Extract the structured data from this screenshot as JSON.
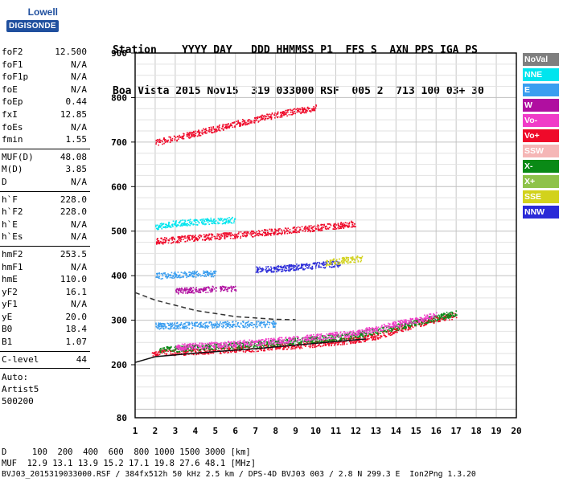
{
  "logo": {
    "line1": "Lowell",
    "line2": "DIGISONDE"
  },
  "header": {
    "line1": "Station    YYYY DAY   DDD HHMMSS P1  FFS S  AXN PPS IGA PS",
    "line2": "Boa Vista 2015 Nov15  319 033000 RSF  005 2  713 100 03+ 30"
  },
  "params_groups": [
    [
      {
        "k": "foF2",
        "v": "12.500"
      },
      {
        "k": "foF1",
        "v": "N/A"
      },
      {
        "k": "foF1p",
        "v": "N/A"
      },
      {
        "k": "foE",
        "v": "N/A"
      },
      {
        "k": "foEp",
        "v": "0.44"
      },
      {
        "k": "fxI",
        "v": "12.85"
      },
      {
        "k": "foEs",
        "v": "N/A"
      },
      {
        "k": "fmin",
        "v": "1.55"
      }
    ],
    [
      {
        "k": "MUF(D)",
        "v": "48.08"
      },
      {
        "k": "M(D)",
        "v": "3.85"
      },
      {
        "k": "D",
        "v": "N/A"
      }
    ],
    [
      {
        "k": "h`F",
        "v": "228.0"
      },
      {
        "k": "h`F2",
        "v": "228.0"
      },
      {
        "k": "h`E",
        "v": "N/A"
      },
      {
        "k": "h`Es",
        "v": "N/A"
      }
    ],
    [
      {
        "k": "hmF2",
        "v": "253.5"
      },
      {
        "k": "hmF1",
        "v": "N/A"
      },
      {
        "k": "hmE",
        "v": "110.0"
      },
      {
        "k": "yF2",
        "v": "16.1"
      },
      {
        "k": "yF1",
        "v": "N/A"
      },
      {
        "k": "yE",
        "v": "20.0"
      },
      {
        "k": "B0",
        "v": "18.4"
      },
      {
        "k": "B1",
        "v": "1.07"
      }
    ],
    [
      {
        "k": "C-level",
        "v": "44"
      }
    ]
  ],
  "auto": {
    "line1": "Auto:",
    "line2": "Artist5",
    "line3": "500200"
  },
  "legend": [
    {
      "label": "NoVal",
      "color": "#7f7f7f"
    },
    {
      "label": "NNE",
      "color": "#00e5ee"
    },
    {
      "label": "E",
      "color": "#3a9ef0"
    },
    {
      "label": "W",
      "color": "#b00fa0"
    },
    {
      "label": "Vo-",
      "color": "#f03cc8"
    },
    {
      "label": "Vo+",
      "color": "#ef0a2a"
    },
    {
      "label": "SSW",
      "color": "#f5b6b6"
    },
    {
      "label": "X-",
      "color": "#0a8a16"
    },
    {
      "label": "X+",
      "color": "#8ec24a"
    },
    {
      "label": "SSE",
      "color": "#d2d21c"
    },
    {
      "label": "NNW",
      "color": "#2a2ad8"
    }
  ],
  "bottom": {
    "line1": "D     100  200  400  600  800 1000 1500 3000 [km]",
    "line2": "MUF  12.9 13.1 13.9 15.2 17.1 19.8 27.6 48.1 [MHz]",
    "line3": "BVJ03_2015319033000.RSF / 384fx512h 50 kHz 2.5 km / DPS-4D BVJ03 003 / 2.8 N 299.3 E  Ion2Png 1.3.20"
  },
  "chart_data": {
    "type": "scatter",
    "xlim": [
      1,
      20
    ],
    "ylim": [
      80,
      900
    ],
    "xticks": [
      "1",
      "2",
      "3",
      "4",
      "5",
      "6",
      "7",
      "8",
      "9",
      "10",
      "11",
      "12",
      "13",
      "14",
      "15",
      "16",
      "17",
      "18",
      "19",
      "20"
    ],
    "yticks": [
      "200",
      "300",
      "400",
      "500",
      "600",
      "700",
      "800",
      "900"
    ],
    "ytick_values": [
      200,
      300,
      400,
      500,
      600,
      700,
      800,
      900
    ],
    "y_bottom_label": "80",
    "grid": true,
    "legend_position": "right",
    "traces": [
      {
        "name": "F2 O-trace",
        "color": "#ef0a2a",
        "points": [
          [
            1.8,
            228
          ],
          [
            3,
            229
          ],
          [
            5,
            233
          ],
          [
            7,
            238
          ],
          [
            9,
            244
          ],
          [
            11,
            252
          ],
          [
            12,
            257
          ],
          [
            13,
            265
          ],
          [
            14,
            278
          ],
          [
            15,
            292
          ],
          [
            16,
            303
          ],
          [
            17,
            312
          ]
        ]
      },
      {
        "name": "F2 X-trace",
        "color": "#0a8a16",
        "points": [
          [
            2.2,
            235
          ],
          [
            4,
            239
          ],
          [
            6,
            244
          ],
          [
            8,
            250
          ],
          [
            10,
            258
          ],
          [
            12,
            268
          ],
          [
            14,
            285
          ],
          [
            16,
            306
          ],
          [
            17,
            318
          ]
        ]
      },
      {
        "name": "Vo- spread",
        "color": "#f03cc8",
        "points": [
          [
            3,
            240
          ],
          [
            6,
            248
          ],
          [
            9,
            258
          ],
          [
            12,
            272
          ],
          [
            14,
            292
          ],
          [
            16,
            312
          ]
        ]
      },
      {
        "name": "2nd hop",
        "color": "#ef0a2a",
        "points": [
          [
            2,
            478
          ],
          [
            4,
            486
          ],
          [
            6,
            492
          ],
          [
            8,
            500
          ],
          [
            10,
            508
          ],
          [
            12,
            518
          ]
        ]
      },
      {
        "name": "2nd hop NNE",
        "color": "#00e5ee",
        "points": [
          [
            2,
            510
          ],
          [
            3,
            518
          ],
          [
            4,
            522
          ],
          [
            5,
            524
          ],
          [
            6,
            526
          ]
        ]
      },
      {
        "name": "3rd hop",
        "color": "#ef0a2a",
        "points": [
          [
            2,
            700
          ],
          [
            4,
            720
          ],
          [
            6,
            742
          ],
          [
            8,
            762
          ],
          [
            10,
            778
          ]
        ]
      },
      {
        "name": "E oblique",
        "color": "#3a9ef0",
        "points": [
          [
            2,
            288
          ],
          [
            4,
            290
          ],
          [
            6,
            292
          ],
          [
            8,
            292
          ]
        ]
      },
      {
        "name": "NNW 420",
        "color": "#2a2ad8",
        "points": [
          [
            7,
            414
          ],
          [
            8.5,
            418
          ],
          [
            10,
            424
          ],
          [
            11.2,
            428
          ]
        ]
      },
      {
        "name": "SSE 440",
        "color": "#d2d21c",
        "points": [
          [
            10.5,
            430
          ],
          [
            11.5,
            436
          ],
          [
            12.3,
            440
          ]
        ]
      },
      {
        "name": "E 405",
        "color": "#3a9ef0",
        "points": [
          [
            2,
            400
          ],
          [
            3,
            403
          ],
          [
            4,
            405
          ],
          [
            5,
            406
          ]
        ]
      },
      {
        "name": "W 360",
        "color": "#b00fa0",
        "points": [
          [
            3,
            366
          ],
          [
            4,
            368
          ],
          [
            5,
            372
          ],
          [
            6,
            372
          ]
        ]
      }
    ],
    "profile_lines": [
      {
        "name": "dashed",
        "style": "dashed",
        "points": [
          [
            1,
            362
          ],
          [
            2,
            345
          ],
          [
            4,
            322
          ],
          [
            6,
            308
          ],
          [
            8,
            302
          ],
          [
            9,
            301
          ]
        ]
      },
      {
        "name": "solid",
        "style": "solid",
        "points": [
          [
            1,
            205
          ],
          [
            2,
            218
          ],
          [
            4,
            226
          ],
          [
            7,
            236
          ],
          [
            10,
            248
          ],
          [
            12.5,
            258
          ]
        ]
      }
    ]
  }
}
